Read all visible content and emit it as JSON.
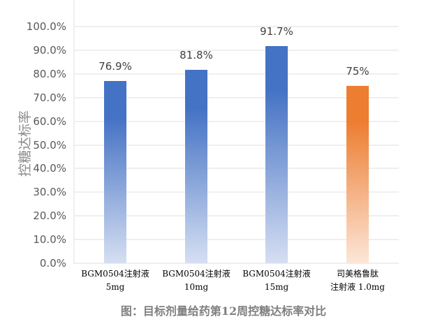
{
  "chart_data": {
    "type": "bar",
    "title": "图：目标剂量给药第12周控糖达标率对比",
    "xlabel": "",
    "ylabel": "控糖达标率",
    "ylim": [
      0,
      100
    ],
    "yticks": [
      "0.0%",
      "10.0%",
      "20.0%",
      "30.0%",
      "40.0%",
      "50.0%",
      "60.0%",
      "70.0%",
      "80.0%",
      "90.0%",
      "100.0%"
    ],
    "grid": true,
    "legend": "none",
    "categories": [
      [
        "BGM0504注射液",
        "5mg"
      ],
      [
        "BGM0504注射液",
        "10mg"
      ],
      [
        "BGM0504注射液",
        "15mg"
      ],
      [
        "司美格鲁肽",
        "注射液 1.0mg"
      ]
    ],
    "values": [
      76.9,
      81.8,
      91.7,
      75
    ],
    "data_labels": [
      "76.9%",
      "81.8%",
      "91.7%",
      "75%"
    ],
    "colors": [
      "#4472c4",
      "#4472c4",
      "#4472c4",
      "#ed7d31"
    ]
  },
  "caption": "图：目标剂量给药第12周控糖达标率对比"
}
